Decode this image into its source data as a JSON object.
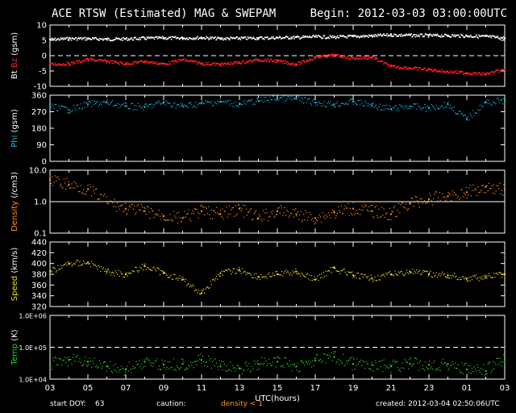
{
  "header": {
    "title": "ACE RTSW (Estimated) MAG & SWEPAM",
    "begin": "Begin: 2012-03-03 03:00:00UTC"
  },
  "footer": {
    "start_doy_label": "start DOY:",
    "start_doy_value": "63",
    "caution_label": "caution:",
    "caution_note": "density < 1",
    "created": "created: 2012-03-04 02:50:06UTC"
  },
  "colors": {
    "bt": "#ffffff",
    "bz": "#ff2020",
    "phi": "#20b8e0",
    "density": "#ff9020",
    "speed": "#e8e020",
    "temp": "#30d030",
    "frame": "#ffffff"
  },
  "x_axis": {
    "label": "UTC(hours)",
    "ticks": [
      "03",
      "05",
      "07",
      "09",
      "11",
      "13",
      "15",
      "17",
      "19",
      "21",
      "23",
      "01",
      "03"
    ]
  },
  "chart_data": [
    {
      "type": "line",
      "ylabel_parts": [
        {
          "text": "Bt",
          "color": "#ffffff"
        },
        {
          "text": " ",
          "color": "#ffffff"
        },
        {
          "text": "Bz",
          "color": "#ff2020"
        },
        {
          "text": " (gsm)",
          "color": "#ffffff"
        }
      ],
      "ylim": [
        -10,
        10
      ],
      "scale": "linear",
      "yticks": [
        "10",
        "5",
        "0",
        "-5",
        "-10"
      ],
      "ytick_values": [
        10,
        5,
        0,
        -5,
        -10
      ],
      "ref_lines": [
        {
          "value": 0,
          "style": "dashed"
        }
      ],
      "x_hours": [
        0,
        1,
        2,
        3,
        4,
        5,
        6,
        7,
        8,
        9,
        10,
        11,
        12,
        13,
        14,
        15,
        16,
        17,
        18,
        19,
        20,
        21,
        22,
        23,
        24
      ],
      "series": [
        {
          "name": "Bt",
          "color": "#ffffff",
          "values": [
            5.3,
            5.6,
            5.6,
            5.4,
            5.5,
            5.7,
            5.8,
            5.8,
            5.9,
            5.6,
            5.7,
            5.8,
            5.9,
            6.0,
            6.2,
            6.1,
            6.3,
            6.5,
            6.8,
            6.7,
            6.6,
            6.6,
            6.5,
            6.3,
            5.8
          ]
        },
        {
          "name": "Bz",
          "color": "#ff2020",
          "values": [
            -2.8,
            -2.6,
            -1.2,
            -1.8,
            -2.6,
            -1.8,
            -2.7,
            -1.3,
            -2.5,
            -2.8,
            -2.2,
            -1.3,
            -1.7,
            -2.8,
            -0.5,
            0.2,
            -0.8,
            -0.5,
            -3.5,
            -4.0,
            -4.5,
            -5.2,
            -5.6,
            -6.0,
            -4.5
          ]
        }
      ]
    },
    {
      "type": "scatter",
      "ylabel_parts": [
        {
          "text": "Phi",
          "color": "#20b8e0"
        },
        {
          "text": " (gsm)",
          "color": "#ffffff"
        }
      ],
      "ylim": [
        0,
        360
      ],
      "scale": "linear",
      "yticks": [
        "360",
        "270",
        "180",
        "90",
        "0"
      ],
      "ytick_values": [
        360,
        270,
        180,
        90,
        0
      ],
      "ref_lines": [],
      "x_hours": [
        0,
        1,
        2,
        3,
        4,
        5,
        6,
        7,
        8,
        9,
        10,
        11,
        12,
        13,
        14,
        15,
        16,
        17,
        18,
        19,
        20,
        21,
        22,
        23,
        24
      ],
      "series": [
        {
          "name": "Phi",
          "color": "#20b8e0",
          "values": [
            300,
            280,
            310,
            320,
            300,
            295,
            320,
            300,
            315,
            325,
            310,
            330,
            345,
            340,
            320,
            310,
            325,
            305,
            285,
            300,
            290,
            310,
            230,
            320,
            330
          ]
        }
      ]
    },
    {
      "type": "scatter",
      "ylabel_parts": [
        {
          "text": "Density",
          "color": "#ff9020"
        },
        {
          "text": " (/cm3)",
          "color": "#ffffff"
        }
      ],
      "ylim": [
        0.1,
        10
      ],
      "scale": "log",
      "yticks": [
        "10.0",
        "1.0",
        "0.1"
      ],
      "ytick_values": [
        10,
        1,
        0.1
      ],
      "ref_lines": [
        {
          "value": 1,
          "style": "solid"
        }
      ],
      "x_hours": [
        0,
        1,
        2,
        3,
        4,
        5,
        6,
        7,
        8,
        9,
        10,
        11,
        12,
        13,
        14,
        15,
        16,
        17,
        18,
        19,
        20,
        21,
        22,
        23,
        24
      ],
      "series": [
        {
          "name": "Density",
          "color": "#ff9020",
          "values": [
            5,
            3.5,
            2.5,
            1,
            0.6,
            0.5,
            0.35,
            0.3,
            0.5,
            0.4,
            0.6,
            0.3,
            0.5,
            0.4,
            0.3,
            0.45,
            0.6,
            0.5,
            0.4,
            0.9,
            1.2,
            1.5,
            2,
            3,
            2.5
          ]
        }
      ]
    },
    {
      "type": "scatter",
      "ylabel_parts": [
        {
          "text": "Speed",
          "color": "#e8e020"
        },
        {
          "text": " (km/s)",
          "color": "#ffffff"
        }
      ],
      "ylim": [
        320,
        440
      ],
      "scale": "linear",
      "yticks": [
        "440",
        "420",
        "400",
        "380",
        "360",
        "340",
        "320"
      ],
      "ytick_values": [
        440,
        420,
        400,
        380,
        360,
        340,
        320
      ],
      "ref_lines": [],
      "x_hours": [
        0,
        1,
        2,
        3,
        4,
        5,
        6,
        7,
        8,
        9,
        10,
        11,
        12,
        13,
        14,
        15,
        16,
        17,
        18,
        19,
        20,
        21,
        22,
        23,
        24
      ],
      "series": [
        {
          "name": "Speed",
          "color": "#e8e020",
          "values": [
            385,
            400,
            402,
            385,
            380,
            395,
            382,
            370,
            345,
            382,
            388,
            375,
            380,
            385,
            370,
            392,
            378,
            372,
            380,
            385,
            380,
            378,
            372,
            375,
            380
          ]
        }
      ]
    },
    {
      "type": "scatter",
      "ylabel_parts": [
        {
          "text": "Temp",
          "color": "#30d030"
        },
        {
          "text": " (K)",
          "color": "#ffffff"
        }
      ],
      "ylim": [
        10000,
        1000000
      ],
      "scale": "log",
      "yticks": [
        "1.0E+06",
        "1.0E+05",
        "1.0E+04"
      ],
      "ytick_values": [
        1000000,
        100000,
        10000
      ],
      "ref_lines": [
        {
          "value": 100000,
          "style": "dashed"
        }
      ],
      "x_hours": [
        0,
        1,
        2,
        3,
        4,
        5,
        6,
        7,
        8,
        9,
        10,
        11,
        12,
        13,
        14,
        15,
        16,
        17,
        18,
        19,
        20,
        21,
        22,
        23,
        24
      ],
      "series": [
        {
          "name": "Temp",
          "color": "#30d030",
          "values": [
            30000,
            40000,
            35000,
            25000,
            20000,
            35000,
            28000,
            30000,
            40000,
            25000,
            22000,
            30000,
            35000,
            25000,
            38000,
            50000,
            30000,
            28000,
            25000,
            30000,
            28000,
            30000,
            20000,
            18000,
            45000
          ]
        }
      ]
    }
  ]
}
